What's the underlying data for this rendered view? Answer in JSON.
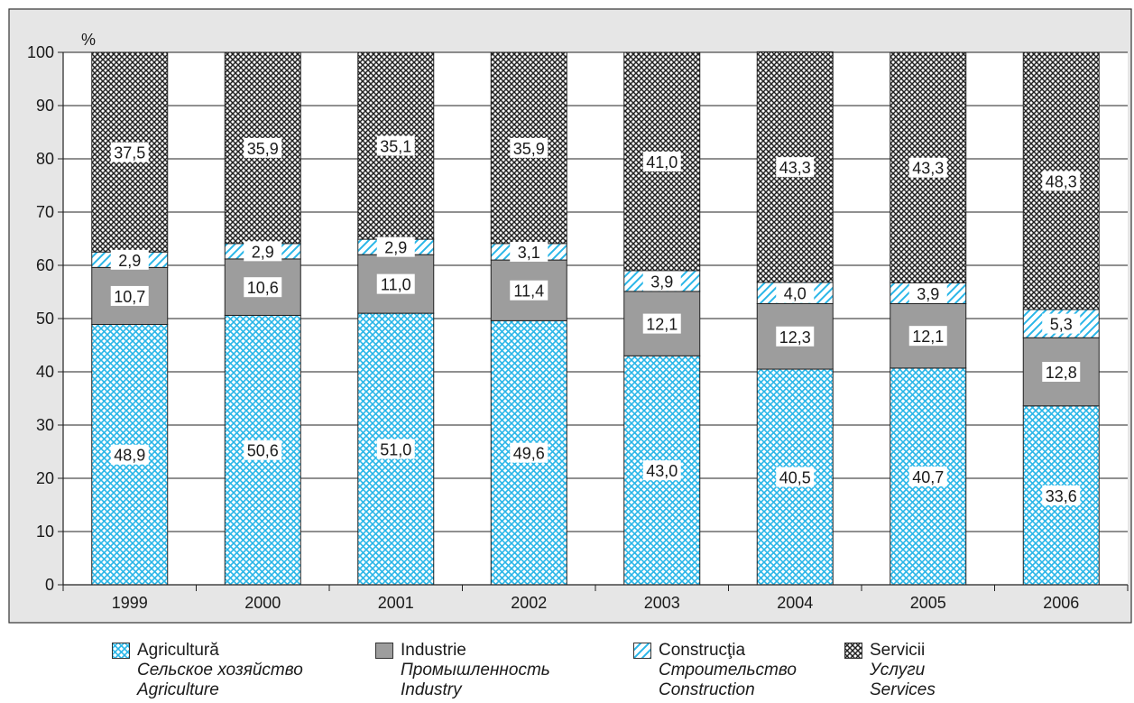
{
  "chart_data": {
    "type": "bar",
    "stacked": true,
    "y_unit_label": "%",
    "ylim": [
      0,
      100
    ],
    "yticks": [
      0,
      10,
      20,
      30,
      40,
      50,
      60,
      70,
      80,
      90,
      100
    ],
    "grid": true,
    "categories": [
      "1999",
      "2000",
      "2001",
      "2002",
      "2003",
      "2004",
      "2005",
      "2006"
    ],
    "series": [
      {
        "key": "agriculture",
        "values": [
          48.9,
          50.6,
          51.0,
          49.6,
          43.0,
          40.5,
          40.7,
          33.6
        ],
        "labels": [
          "48,9",
          "50,6",
          "51,0",
          "49,6",
          "43,0",
          "40,5",
          "40,7",
          "33,6"
        ],
        "color": "#29b6e8",
        "pattern": "crosshatch"
      },
      {
        "key": "industry",
        "values": [
          10.7,
          10.6,
          11.0,
          11.4,
          12.1,
          12.3,
          12.1,
          12.8
        ],
        "labels": [
          "10,7",
          "10,6",
          "11,0",
          "11,4",
          "12,1",
          "12,3",
          "12,1",
          "12,8"
        ],
        "color": "#9d9d9d",
        "pattern": "solid"
      },
      {
        "key": "construction",
        "values": [
          2.9,
          2.9,
          2.9,
          3.1,
          3.9,
          4.0,
          3.9,
          5.3
        ],
        "labels": [
          "2,9",
          "2,9",
          "2,9",
          "3,1",
          "3,9",
          "4,0",
          "3,9",
          "5,3"
        ],
        "color": "#29b6e8",
        "pattern": "diagonal"
      },
      {
        "key": "services",
        "values": [
          37.5,
          35.9,
          35.1,
          35.9,
          41.0,
          43.3,
          43.3,
          48.3
        ],
        "labels": [
          "37,5",
          "35,9",
          "35,1",
          "35,9",
          "41,0",
          "43,3",
          "43,3",
          "48,3"
        ],
        "color": "#222222",
        "pattern": "crosshatch"
      }
    ],
    "legend_position": "bottom"
  },
  "legend": [
    {
      "key": "agriculture",
      "ro": "Agricultură",
      "ru": "Сельское хозяйство",
      "en": "Agriculture"
    },
    {
      "key": "industry",
      "ro": "Industrie",
      "ru": "Промышленность",
      "en": "Industry"
    },
    {
      "key": "construction",
      "ro": "Construcţia",
      "ru": "Строительство",
      "en": "Construction"
    },
    {
      "key": "services",
      "ro": "Servicii",
      "ru": "Услуги",
      "en": "Services"
    }
  ],
  "colors": {
    "plot_frame_bg": "#e6e6e6",
    "plot_area_bg": "#ffffff",
    "grid": "#222222",
    "text": "#1a1a1a"
  }
}
